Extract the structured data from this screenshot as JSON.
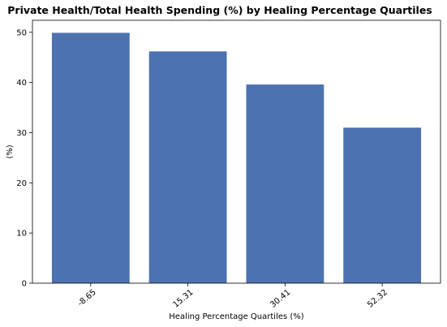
{
  "chart_data": {
    "type": "bar",
    "title": "Private Health/Total Health Spending (%) by Healing Percentage Quartiles",
    "xlabel": "Healing Percentage Quartiles (%)",
    "ylabel": "(%)",
    "categories": [
      "-8.65",
      "15.31",
      "30.41",
      "52.32"
    ],
    "values": [
      49.9,
      46.2,
      39.6,
      31.0
    ],
    "ylim": [
      0,
      52.4
    ],
    "yticks": [
      0,
      10,
      20,
      30,
      40,
      50
    ],
    "grid": false,
    "bar_color": "#4c72b0"
  }
}
